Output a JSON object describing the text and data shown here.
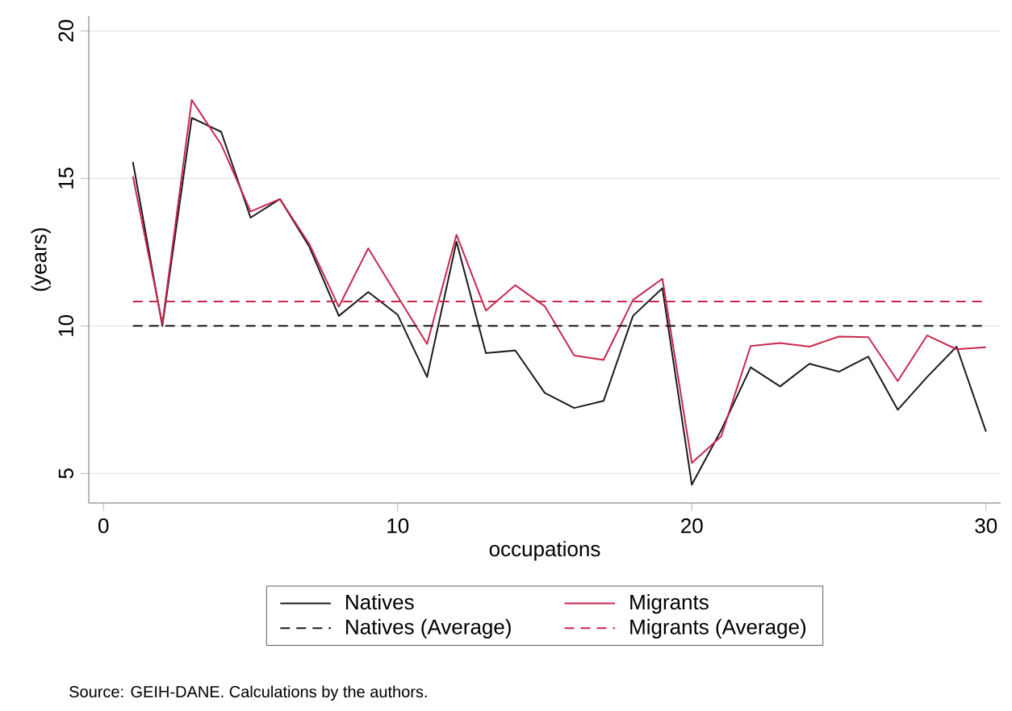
{
  "chart_data": {
    "type": "line",
    "xlabel": "occupations",
    "ylabel": "(years)",
    "annotations": [
      "Source: GEIH-DANE. Calculations by the authors."
    ],
    "x": [
      1,
      2,
      3,
      4,
      5,
      6,
      7,
      8,
      9,
      10,
      11,
      12,
      13,
      14,
      15,
      16,
      17,
      18,
      19,
      20,
      21,
      22,
      23,
      24,
      25,
      26,
      27,
      28,
      29,
      30
    ],
    "series": [
      {
        "name": "Natives",
        "color": "#1a1a1a",
        "line_style": "solid",
        "values": [
          15.56,
          10.0,
          17.05,
          16.58,
          13.67,
          14.3,
          12.68,
          10.34,
          11.15,
          10.38,
          8.27,
          12.86,
          9.08,
          9.17,
          7.73,
          7.22,
          7.46,
          10.34,
          11.28,
          4.62,
          6.47,
          8.6,
          7.95,
          8.72,
          8.45,
          8.96,
          7.16,
          8.27,
          9.3,
          6.42
        ]
      },
      {
        "name": "Migrants",
        "color": "#c8284f",
        "line_style": "solid",
        "values": [
          15.07,
          10.07,
          17.66,
          16.15,
          13.88,
          14.3,
          12.77,
          10.65,
          12.63,
          11.0,
          9.39,
          13.09,
          10.52,
          11.38,
          10.67,
          9.0,
          8.85,
          10.88,
          11.6,
          5.36,
          6.26,
          9.32,
          9.42,
          9.3,
          9.64,
          9.62,
          8.13,
          9.68,
          9.21,
          9.28
        ]
      },
      {
        "name": "Natives (Average)",
        "color": "#1a1a1a",
        "line_style": "dashed",
        "values": [
          10.0,
          10.0,
          10.0,
          10.0,
          10.0,
          10.0,
          10.0,
          10.0,
          10.0,
          10.0,
          10.0,
          10.0,
          10.0,
          10.0,
          10.0,
          10.0,
          10.0,
          10.0,
          10.0,
          10.0,
          10.0,
          10.0,
          10.0,
          10.0,
          10.0,
          10.0,
          10.0,
          10.0,
          10.0,
          10.0
        ]
      },
      {
        "name": "Migrants (Average)",
        "color": "#c8284f",
        "line_style": "dashed",
        "values": [
          10.83,
          10.83,
          10.83,
          10.83,
          10.83,
          10.83,
          10.83,
          10.83,
          10.83,
          10.83,
          10.83,
          10.83,
          10.83,
          10.83,
          10.83,
          10.83,
          10.83,
          10.83,
          10.83,
          10.83,
          10.83,
          10.83,
          10.83,
          10.83,
          10.83,
          10.83,
          10.83,
          10.83,
          10.83,
          10.83
        ]
      }
    ],
    "xlim": [
      -0.5,
      30.5
    ],
    "ylim": [
      4,
      20.5
    ],
    "xticks": [
      0,
      10,
      20,
      30
    ],
    "yticks": [
      5,
      10,
      15,
      20
    ],
    "grid": "y",
    "legend": "bottom"
  }
}
